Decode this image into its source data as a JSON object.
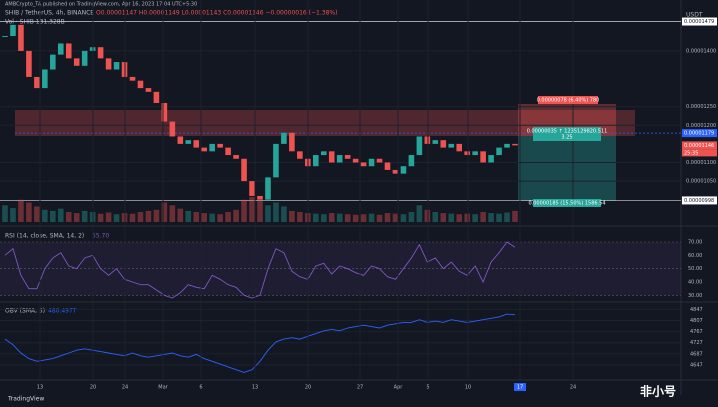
{
  "header": {
    "publisher": "AMBCrypto_TA published on TradingView.com, Apr 16, 2023 17:04 UTC+5:30",
    "symbol": "SHIB / TetherUS, 4h, BINANCE",
    "ohlc": "O0.00001147 H0.00001149 L0.00001143 C0.00001146 −0.00000016 (−1.38%)",
    "volume_legend": "Vol · SHIB 131.328B",
    "currency": "USDT"
  },
  "price_axis": {
    "lim": [
      9.4e-06,
      1.51e-05
    ],
    "ticks": [
      {
        "value": 1.4e-05,
        "label": "0.00001400"
      },
      {
        "value": 1.25e-05,
        "label": "0.00001250"
      },
      {
        "value": 1.2e-05,
        "label": "0.00001200"
      },
      {
        "value": 1.1e-05,
        "label": "0.00001100"
      },
      {
        "value": 1.05e-05,
        "label": "0.00001050"
      }
    ]
  },
  "levels": [
    {
      "value": 1.479e-05,
      "label": "0.00001479"
    },
    {
      "value": 1.179e-05,
      "label": "0.00001179"
    },
    {
      "value": 1.146e-05,
      "label": "0.00001146"
    },
    {
      "value": 9.98e-06,
      "label": "0.00000998"
    }
  ],
  "countdown": "25:35",
  "position": {
    "target": "0.00000078 (6.40%) 780",
    "entry": "0.00000035 ↑ 1235129820.511",
    "ratio": "3.25",
    "stop": "0.00000185 (15.50%) 1586.54"
  },
  "price": {
    "close": [
      1.44e-05,
      1.47e-05,
      1.4e-05,
      1.33e-05,
      1.3e-05,
      1.35e-05,
      1.39e-05,
      1.42e-05,
      1.38e-05,
      1.36e-05,
      1.4e-05,
      1.41e-05,
      1.38e-05,
      1.35e-05,
      1.37e-05,
      1.33e-05,
      1.32e-05,
      1.3e-05,
      1.29e-05,
      1.26e-05,
      1.21e-05,
      1.17e-05,
      1.15e-05,
      1.16e-05,
      1.14e-05,
      1.13e-05,
      1.15e-05,
      1.14e-05,
      1.12e-05,
      1.11e-05,
      1.05e-05,
      1.01e-05,
      1e-05,
      1.06e-05,
      1.15e-05,
      1.18e-05,
      1.13e-05,
      1.11e-05,
      1.09e-05,
      1.12e-05,
      1.13e-05,
      1.1e-05,
      1.12e-05,
      1.11e-05,
      1.1e-05,
      1.09e-05,
      1.11e-05,
      1.1e-05,
      1.08e-05,
      1.07e-05,
      1.09e-05,
      1.12e-05,
      1.17e-05,
      1.15e-05,
      1.16e-05,
      1.14e-05,
      1.15e-05,
      1.13e-05,
      1.12e-05,
      1.13e-05,
      1.1e-05,
      1.12e-05,
      1.14e-05,
      1.15e-05,
      1.146e-05
    ],
    "volume": [
      30,
      25,
      40,
      35,
      28,
      22,
      20,
      24,
      18,
      16,
      20,
      18,
      15,
      17,
      14,
      16,
      15,
      18,
      20,
      22,
      35,
      30,
      24,
      20,
      18,
      16,
      15,
      14,
      18,
      22,
      40,
      45,
      38,
      30,
      35,
      28,
      20,
      18,
      16,
      15,
      14,
      16,
      15,
      14,
      13,
      14,
      15,
      13,
      16,
      15,
      14,
      18,
      30,
      22,
      18,
      16,
      15,
      14,
      15,
      14,
      18,
      16,
      15,
      17,
      20
    ]
  },
  "rsi": {
    "legend": "RSI (14, close, SMA, 14, 2)",
    "value": "55.70",
    "lim": [
      25,
      79
    ],
    "ticks": [
      {
        "value": 70,
        "label": "70.00"
      },
      {
        "value": 60,
        "label": "60.00"
      },
      {
        "value": 50,
        "label": "50.00"
      },
      {
        "value": 40,
        "label": "40.00"
      },
      {
        "value": 30,
        "label": "30.00"
      }
    ],
    "values": [
      60,
      65,
      45,
      35,
      35,
      50,
      58,
      62,
      52,
      50,
      58,
      60,
      50,
      45,
      50,
      42,
      40,
      38,
      38,
      34,
      30,
      28,
      32,
      38,
      36,
      35,
      45,
      42,
      38,
      36,
      30,
      28,
      30,
      50,
      65,
      62,
      48,
      44,
      42,
      52,
      54,
      46,
      52,
      50,
      47,
      45,
      52,
      50,
      44,
      42,
      50,
      58,
      68,
      55,
      58,
      50,
      55,
      48,
      45,
      52,
      40,
      55,
      62,
      70,
      66
    ]
  },
  "obv": {
    "legend": "OBV (SMA, 5)",
    "value": "480.497T",
    "lim": [
      4600,
      4870
    ],
    "ticks": [
      4847,
      4807,
      4767,
      4727,
      4687,
      4647
    ],
    "values": [
      4740,
      4720,
      4690,
      4670,
      4660,
      4665,
      4670,
      4680,
      4690,
      4700,
      4705,
      4700,
      4695,
      4690,
      4685,
      4680,
      4690,
      4680,
      4675,
      4680,
      4685,
      4690,
      4680,
      4675,
      4685,
      4670,
      4660,
      4650,
      4640,
      4630,
      4620,
      4630,
      4660,
      4700,
      4730,
      4740,
      4745,
      4740,
      4750,
      4760,
      4770,
      4775,
      4770,
      4780,
      4785,
      4790,
      4785,
      4780,
      4790,
      4795,
      4800,
      4800,
      4810,
      4800,
      4805,
      4800,
      4810,
      4805,
      4800,
      4805,
      4810,
      4815,
      4820,
      4830,
      4828
    ]
  },
  "time_axis": [
    "13",
    "20",
    "24",
    "Mar",
    "6",
    "13",
    "20",
    "27",
    "Apr",
    "5",
    "10",
    "17",
    "24"
  ],
  "logo": "TradingView",
  "watermark": "非小号"
}
